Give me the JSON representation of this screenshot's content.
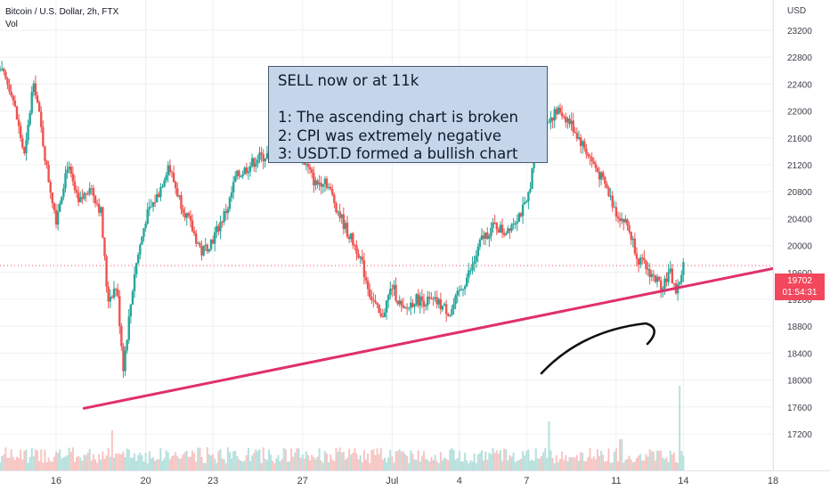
{
  "header": {
    "symbol_line": "Bitcoin / U.S. Dollar, 2h, FTX",
    "volume_label": "Vol"
  },
  "annotation": {
    "line1": "SELL now or at 11k",
    "line2": "",
    "line3": "1: The ascending chart is broken",
    "line4": "2: CPI was extremely negative",
    "line5": "3: USDT.D formed a bullish chart"
  },
  "price_label": {
    "price": "19702",
    "countdown": "01:54:31"
  },
  "colors": {
    "up": "#26a69a",
    "down": "#ef5350",
    "trendline": "#e0306b",
    "price_line": "#f2475d",
    "vol_up": "#b6e0dc",
    "vol_down": "#f6c5c3"
  },
  "chart_data": {
    "type": "candlestick",
    "title": "Bitcoin / U.S. Dollar, 2h, FTX",
    "currency_label": "USD",
    "x_ticks": [
      "16",
      "20",
      "23",
      "27",
      "Jul",
      "4",
      "7",
      "11",
      "14",
      "18"
    ],
    "y_ticks": [
      17200,
      17600,
      18000,
      18400,
      18800,
      19200,
      19600,
      20000,
      20400,
      20800,
      21200,
      21600,
      22000,
      22400,
      22800,
      23200
    ],
    "ylim": [
      17000,
      23450
    ],
    "last_price": 19702,
    "trendline": {
      "start": {
        "date": "Jun 18",
        "price": 17580
      },
      "end": {
        "date": "Jul 18",
        "price": 19870
      }
    },
    "price_path": [
      [
        "Jun 13",
        22900
      ],
      [
        "Jun 14",
        22300
      ],
      [
        "Jun 14.6",
        21300
      ],
      [
        "Jun 15",
        22500
      ],
      [
        "Jun 15.6",
        21100
      ],
      [
        "Jun 16",
        20400
      ],
      [
        "Jun 16.5",
        21200
      ],
      [
        "Jun 17",
        20600
      ],
      [
        "Jun 17.5",
        20900
      ],
      [
        "Jun 18",
        20500
      ],
      [
        "Jun 18.3",
        19200
      ],
      [
        "Jun 18.7",
        19400
      ],
      [
        "Jun 19",
        18200
      ],
      [
        "Jun 19.5",
        19600
      ],
      [
        "Jun 20",
        20400
      ],
      [
        "Jun 20.6",
        20800
      ],
      [
        "Jun 21",
        21200
      ],
      [
        "Jun 21.5",
        20700
      ],
      [
        "Jun 22",
        20300
      ],
      [
        "Jun 22.5",
        19900
      ],
      [
        "Jun 23",
        20100
      ],
      [
        "Jun 23.7",
        20600
      ],
      [
        "Jun 24",
        21000
      ],
      [
        "Jun 25",
        21300
      ],
      [
        "Jun 26",
        21400
      ],
      [
        "Jun 26.6",
        21600
      ],
      [
        "Jun 27",
        21300
      ],
      [
        "Jun 27.6",
        20900
      ],
      [
        "Jun 28",
        21000
      ],
      [
        "Jun 28.6",
        20500
      ],
      [
        "Jun 29",
        20200
      ],
      [
        "Jun 29.5",
        19900
      ],
      [
        "Jun 30",
        19300
      ],
      [
        "Jun 30.5",
        18900
      ],
      [
        "Jul 1",
        19400
      ],
      [
        "Jul 1.5",
        19000
      ],
      [
        "Jul 2",
        19200
      ],
      [
        "Jul 3",
        19150
      ],
      [
        "Jul 3.6",
        19000
      ],
      [
        "Jul 4",
        19300
      ],
      [
        "Jul 4.6",
        19700
      ],
      [
        "Jul 5",
        20100
      ],
      [
        "Jul 5.6",
        20300
      ],
      [
        "Jul 6",
        20200
      ],
      [
        "Jul 6.5",
        20400
      ],
      [
        "Jul 7",
        20600
      ],
      [
        "Jul 7.5",
        21600
      ],
      [
        "Jul 8",
        21900
      ],
      [
        "Jul 8.5",
        22000
      ],
      [
        "Jul 9",
        21800
      ],
      [
        "Jul 9.5",
        21500
      ],
      [
        "Jul 10",
        21200
      ],
      [
        "Jul 10.5",
        20900
      ],
      [
        "Jul 11",
        20500
      ],
      [
        "Jul 11.5",
        20300
      ],
      [
        "Jul 12",
        19800
      ],
      [
        "Jul 12.5",
        19600
      ],
      [
        "Jul 13",
        19400
      ],
      [
        "Jul 13.4",
        19600
      ],
      [
        "Jul 13.7",
        19300
      ],
      [
        "Jul 14",
        19702
      ]
    ],
    "volume_spikes": [
      {
        "date": "Jun 18.5",
        "relative": 0.45
      },
      {
        "date": "Jul 8",
        "relative": 0.55
      },
      {
        "date": "Jul 13.8",
        "relative": 0.95
      },
      {
        "date": "Jul 11.2",
        "relative": 0.35
      }
    ]
  }
}
